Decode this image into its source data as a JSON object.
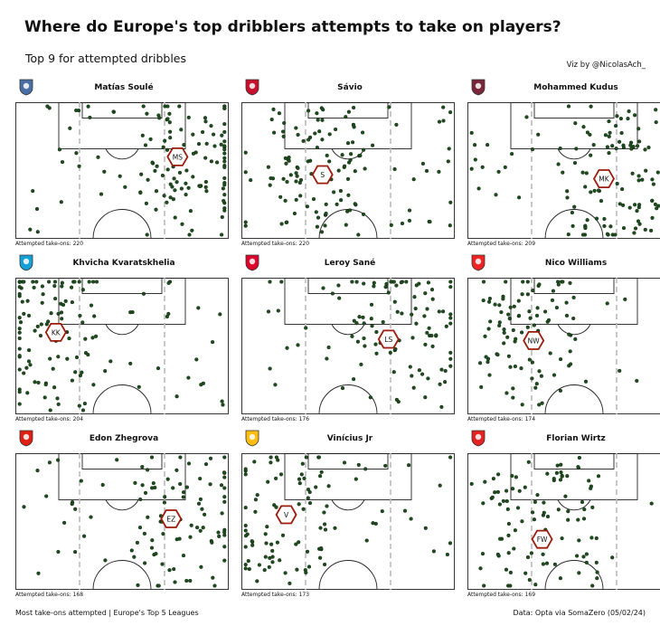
{
  "title": "Where do Europe's top dribblers attempts to take on players?",
  "subtitle": "Top 9 for attempted dribbles",
  "credit": "Viz by @NicolasAch_",
  "footer": {
    "left": "Most take-ons attempted | Europe's Top 5 Leagues",
    "right": "Data: Opta via SomaZero (05/02/24)"
  },
  "colors": {
    "dot_fill": "#1f4d1f",
    "hex_stroke": "#9b1c0c",
    "pitch_line": "#222222",
    "channel_line": "#bbbbbb"
  },
  "chart_data": [
    {
      "type": "scatter",
      "player": "Matías Soulé",
      "initials": "MS",
      "attempts_label": "Attempted take-ons: 220",
      "attempts": 220,
      "crest_color": "#4a6fa5",
      "avg": [
        0.76,
        0.4
      ],
      "cluster": {
        "x": [
          0.02,
          0.98
        ],
        "y": [
          0.02,
          0.98
        ],
        "bias": "right"
      }
    },
    {
      "type": "scatter",
      "player": "Sávio",
      "initials": "S",
      "attempts_label": "Attempted take-ons: 220",
      "attempts": 220,
      "crest_color": "#c8102e",
      "avg": [
        0.38,
        0.53
      ],
      "cluster": {
        "x": [
          0.02,
          0.98
        ],
        "y": [
          0.02,
          0.98
        ],
        "bias": "left"
      }
    },
    {
      "type": "scatter",
      "player": "Mohammed Kudus",
      "initials": "MK",
      "attempts_label": "Attempted take-ons: 209",
      "attempts": 209,
      "crest_color": "#7a263a",
      "avg": [
        0.64,
        0.56
      ],
      "cluster": {
        "x": [
          0.02,
          0.98
        ],
        "y": [
          0.02,
          0.98
        ],
        "bias": "right"
      }
    },
    {
      "type": "scatter",
      "player": "Khvicha Kvaratskhelia",
      "initials": "KK",
      "attempts_label": "Attempted take-ons: 204",
      "attempts": 204,
      "crest_color": "#12a0d7",
      "avg": [
        0.19,
        0.4
      ],
      "cluster": {
        "x": [
          0.02,
          0.98
        ],
        "y": [
          0.02,
          0.98
        ],
        "bias": "left"
      }
    },
    {
      "type": "scatter",
      "player": "Leroy Sané",
      "initials": "LS",
      "attempts_label": "Attempted take-ons: 176",
      "attempts": 176,
      "crest_color": "#dc052d",
      "avg": [
        0.69,
        0.45
      ],
      "cluster": {
        "x": [
          0.02,
          0.98
        ],
        "y": [
          0.02,
          0.98
        ],
        "bias": "right"
      }
    },
    {
      "type": "scatter",
      "player": "Nico Williams",
      "initials": "NW",
      "attempts_label": "Attempted take-ons: 174",
      "attempts": 174,
      "crest_color": "#ee2523",
      "avg": [
        0.31,
        0.46
      ],
      "cluster": {
        "x": [
          0.02,
          0.98
        ],
        "y": [
          0.02,
          0.98
        ],
        "bias": "left"
      }
    },
    {
      "type": "scatter",
      "player": "Edon Zhegrova",
      "initials": "EZ",
      "attempts_label": "Attempted take-ons: 168",
      "attempts": 168,
      "crest_color": "#e01e13",
      "avg": [
        0.73,
        0.48
      ],
      "cluster": {
        "x": [
          0.02,
          0.98
        ],
        "y": [
          0.02,
          0.98
        ],
        "bias": "right"
      }
    },
    {
      "type": "scatter",
      "player": "Vinícius Jr",
      "initials": "V",
      "attempts_label": "Attempted take-ons: 173",
      "attempts": 173,
      "crest_color": "#febe10",
      "avg": [
        0.21,
        0.45
      ],
      "cluster": {
        "x": [
          0.02,
          0.98
        ],
        "y": [
          0.02,
          0.98
        ],
        "bias": "left"
      }
    },
    {
      "type": "scatter",
      "player": "Florian Wirtz",
      "initials": "FW",
      "attempts_label": "Attempted take-ons: 169",
      "attempts": 169,
      "crest_color": "#e32221",
      "avg": [
        0.35,
        0.63
      ],
      "cluster": {
        "x": [
          0.02,
          0.98
        ],
        "y": [
          0.02,
          0.98
        ],
        "bias": "center"
      }
    }
  ]
}
